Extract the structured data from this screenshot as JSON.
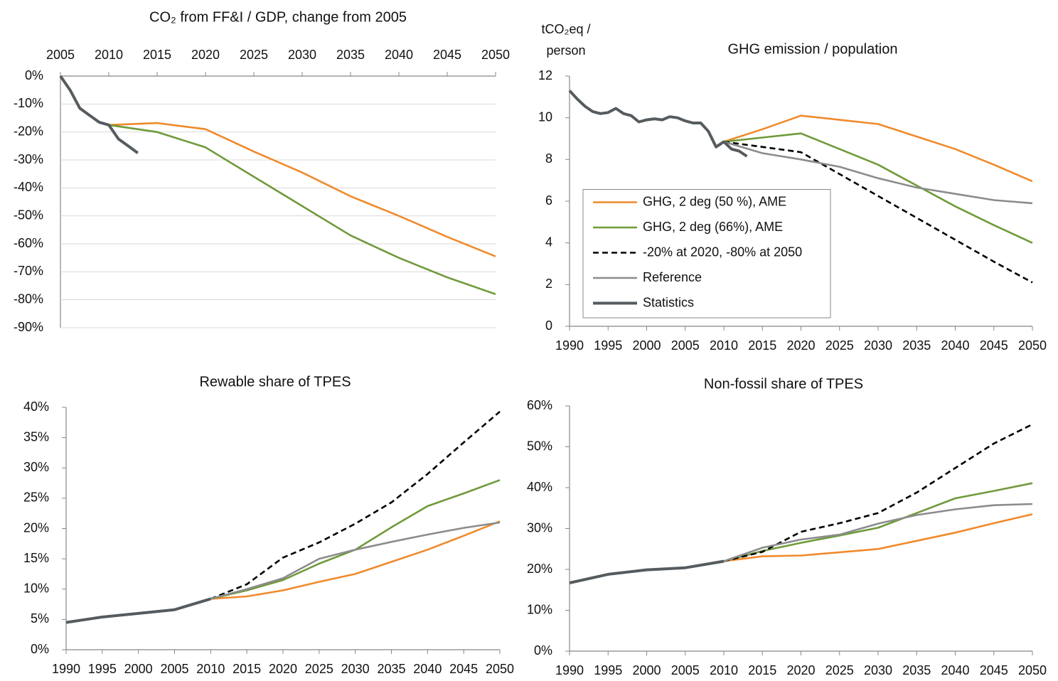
{
  "chart_data": [
    {
      "type": "line",
      "title": "CO₂ from FF&I / GDP, change from 2005",
      "xaxis_position": "top",
      "grid": true,
      "xlim": [
        2005,
        2050
      ],
      "xticks": [
        2005,
        2010,
        2015,
        2020,
        2025,
        2030,
        2035,
        2040,
        2045,
        2050
      ],
      "ylim": [
        -90,
        0
      ],
      "yticks": [
        {
          "value": 0,
          "label": "0%"
        },
        {
          "value": -10,
          "label": "-10%"
        },
        {
          "value": -20,
          "label": "-20%"
        },
        {
          "value": -30,
          "label": "-30%"
        },
        {
          "value": -40,
          "label": "-40%"
        },
        {
          "value": -50,
          "label": "-50%"
        },
        {
          "value": -60,
          "label": "-60%"
        },
        {
          "value": -70,
          "label": "-70%"
        },
        {
          "value": -80,
          "label": "-80%"
        },
        {
          "value": -90,
          "label": "-90%"
        }
      ],
      "series": [
        {
          "color": "#f08a2c",
          "x": [
            2010,
            2015,
            2020,
            2025,
            2030,
            2035,
            2040,
            2045,
            2050
          ],
          "values": [
            -17.5,
            -16.8,
            -19,
            -27,
            -34.5,
            -43,
            -50,
            -57.5,
            -64.5
          ]
        },
        {
          "color": "#6f9a3a",
          "x": [
            2010,
            2015,
            2020,
            2025,
            2030,
            2035,
            2040,
            2045,
            2050
          ],
          "values": [
            -17.5,
            -20,
            -25.5,
            -36,
            -46.5,
            -57,
            -65,
            -72,
            -78
          ]
        },
        {
          "color": "#555b5e",
          "width": 4,
          "x": [
            2005,
            2006,
            2007,
            2008,
            2009,
            2010,
            2011,
            2012,
            2013
          ],
          "values": [
            0,
            -5,
            -11.5,
            -14,
            -16.5,
            -17.5,
            -22.5,
            -25,
            -27.5
          ]
        }
      ]
    },
    {
      "type": "line",
      "title": "GHG emission / population",
      "ylabel": [
        "tCO₂eq /",
        "person"
      ],
      "grid": false,
      "legend": "lower left",
      "xlim": [
        1990,
        2050
      ],
      "xticks": [
        1990,
        1995,
        2000,
        2005,
        2010,
        2015,
        2020,
        2025,
        2030,
        2035,
        2040,
        2045,
        2050
      ],
      "ylim": [
        0,
        12
      ],
      "yticks": [
        0,
        2,
        4,
        6,
        8,
        10,
        12
      ],
      "series": [
        {
          "name": "GHG, 2 deg (50 %), AME",
          "color": "#f08a2c",
          "x": [
            2010,
            2015,
            2020,
            2025,
            2030,
            2035,
            2040,
            2045,
            2050
          ],
          "values": [
            8.85,
            9.45,
            10.1,
            9.9,
            9.7,
            9.1,
            8.5,
            7.75,
            6.95
          ]
        },
        {
          "name": "GHG, 2 deg (66%), AME",
          "color": "#6f9a3a",
          "x": [
            2010,
            2015,
            2020,
            2025,
            2030,
            2035,
            2040,
            2045,
            2050
          ],
          "values": [
            8.85,
            9.05,
            9.25,
            8.5,
            7.75,
            6.75,
            5.75,
            4.85,
            4.0
          ]
        },
        {
          "name": "-20% at 2020, -80% at 2050",
          "color": "#000000",
          "dash": true,
          "x": [
            2010,
            2015,
            2020,
            2025,
            2030,
            2035,
            2040,
            2045,
            2050
          ],
          "values": [
            8.85,
            8.6,
            8.35,
            7.3,
            6.25,
            5.2,
            4.15,
            3.1,
            2.1
          ]
        },
        {
          "name": "Reference",
          "color": "#8c8c8c",
          "x": [
            2010,
            2015,
            2020,
            2025,
            2030,
            2035,
            2040,
            2045,
            2050
          ],
          "values": [
            8.85,
            8.3,
            8.0,
            7.65,
            7.1,
            6.65,
            6.35,
            6.05,
            5.9
          ]
        },
        {
          "name": "Statistics",
          "color": "#555b5e",
          "width": 4,
          "x": [
            1990,
            1991,
            1992,
            1993,
            1994,
            1995,
            1996,
            1997,
            1998,
            1999,
            2000,
            2001,
            2002,
            2003,
            2004,
            2005,
            2006,
            2007,
            2008,
            2009,
            2010,
            2011,
            2012,
            2013
          ],
          "values": [
            11.3,
            10.9,
            10.55,
            10.3,
            10.2,
            10.25,
            10.45,
            10.2,
            10.1,
            9.8,
            9.9,
            9.95,
            9.9,
            10.05,
            10.0,
            9.85,
            9.75,
            9.75,
            9.35,
            8.6,
            8.85,
            8.5,
            8.4,
            8.15
          ]
        }
      ]
    },
    {
      "type": "line",
      "title": "Rewable share of TPES",
      "grid": false,
      "xlim": [
        1990,
        2050
      ],
      "xticks": [
        1990,
        1995,
        2000,
        2005,
        2010,
        2015,
        2020,
        2025,
        2030,
        2035,
        2040,
        2045,
        2050
      ],
      "ylim": [
        0,
        40
      ],
      "yticks": [
        {
          "value": 0,
          "label": "0%"
        },
        {
          "value": 5,
          "label": "5%"
        },
        {
          "value": 10,
          "label": "10%"
        },
        {
          "value": 15,
          "label": "15%"
        },
        {
          "value": 20,
          "label": "20%"
        },
        {
          "value": 25,
          "label": "25%"
        },
        {
          "value": 30,
          "label": "30%"
        },
        {
          "value": 35,
          "label": "35%"
        },
        {
          "value": 40,
          "label": "40%"
        }
      ],
      "series": [
        {
          "color": "#f08a2c",
          "x": [
            2010,
            2015,
            2020,
            2025,
            2030,
            2035,
            2040,
            2045,
            2050
          ],
          "values": [
            8.4,
            8.8,
            9.8,
            11.2,
            12.5,
            14.5,
            16.5,
            18.8,
            21.2
          ]
        },
        {
          "color": "#6f9a3a",
          "x": [
            2010,
            2015,
            2020,
            2025,
            2030,
            2035,
            2040,
            2045,
            2050
          ],
          "values": [
            8.4,
            9.8,
            11.5,
            14.2,
            16.5,
            20.2,
            23.7,
            25.8,
            28.0
          ]
        },
        {
          "color": "#000000",
          "dash": true,
          "x": [
            2010,
            2015,
            2020,
            2025,
            2030,
            2035,
            2040,
            2045,
            2050
          ],
          "values": [
            8.4,
            10.8,
            15.2,
            17.7,
            20.8,
            24.3,
            29.0,
            34.2,
            39.3
          ]
        },
        {
          "color": "#8c8c8c",
          "x": [
            2010,
            2015,
            2020,
            2025,
            2030,
            2035,
            2040,
            2045,
            2050
          ],
          "values": [
            8.4,
            10.0,
            11.8,
            15.0,
            16.5,
            17.8,
            19.0,
            20.1,
            21.0
          ]
        },
        {
          "color": "#555b5e",
          "width": 4,
          "x": [
            1990,
            1995,
            2000,
            2005,
            2010
          ],
          "values": [
            4.5,
            5.4,
            6.0,
            6.6,
            8.4
          ]
        }
      ]
    },
    {
      "type": "line",
      "title": "Non-fossil share of TPES",
      "grid": false,
      "xlim": [
        1990,
        2050
      ],
      "xticks": [
        1990,
        1995,
        2000,
        2005,
        2010,
        2015,
        2020,
        2025,
        2030,
        2035,
        2040,
        2045,
        2050
      ],
      "ylim": [
        0,
        60
      ],
      "yticks": [
        {
          "value": 0,
          "label": "0%"
        },
        {
          "value": 10,
          "label": "10%"
        },
        {
          "value": 20,
          "label": "20%"
        },
        {
          "value": 30,
          "label": "30%"
        },
        {
          "value": 40,
          "label": "40%"
        },
        {
          "value": 50,
          "label": "50%"
        },
        {
          "value": 60,
          "label": "60%"
        }
      ],
      "series": [
        {
          "color": "#f08a2c",
          "x": [
            2010,
            2015,
            2020,
            2025,
            2030,
            2035,
            2040,
            2045,
            2050
          ],
          "values": [
            22,
            23.2,
            23.4,
            24.2,
            25.0,
            27.0,
            29.0,
            31.3,
            33.5
          ]
        },
        {
          "color": "#6f9a3a",
          "x": [
            2010,
            2015,
            2020,
            2025,
            2030,
            2035,
            2040,
            2045,
            2050
          ],
          "values": [
            22,
            24.5,
            26.5,
            28.3,
            30.2,
            33.8,
            37.4,
            39.2,
            41.1
          ]
        },
        {
          "color": "#000000",
          "dash": true,
          "x": [
            2010,
            2015,
            2020,
            2025,
            2030,
            2035,
            2040,
            2045,
            2050
          ],
          "values": [
            22,
            24.3,
            29.2,
            31.3,
            33.8,
            38.8,
            44.8,
            50.8,
            55.5
          ]
        },
        {
          "color": "#8c8c8c",
          "x": [
            2010,
            2015,
            2020,
            2025,
            2030,
            2035,
            2040,
            2045,
            2050
          ],
          "values": [
            22,
            25.3,
            27.3,
            28.5,
            31.2,
            33.3,
            34.7,
            35.7,
            36.0
          ]
        },
        {
          "color": "#555b5e",
          "width": 4,
          "x": [
            1990,
            1995,
            2000,
            2005,
            2010
          ],
          "values": [
            16.7,
            18.8,
            19.9,
            20.4,
            22.0
          ]
        }
      ]
    }
  ]
}
